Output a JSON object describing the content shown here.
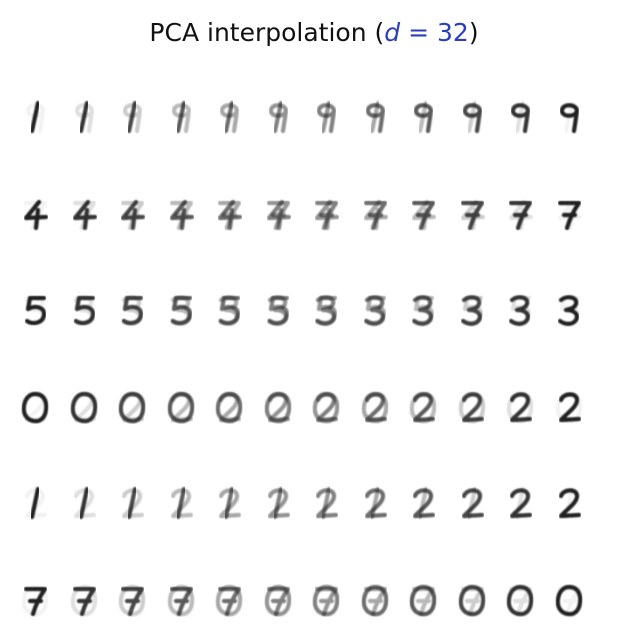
{
  "title": {
    "prefix": "PCA interpolation (",
    "variable": "d",
    "operator": " = ",
    "value": "32",
    "suffix": ")",
    "accent_color": "#2a3dbf"
  },
  "grid": {
    "rows": 6,
    "columns": 12,
    "row_transitions": [
      {
        "from": "1",
        "to": "9"
      },
      {
        "from": "4",
        "to": "7"
      },
      {
        "from": "5",
        "to": "3"
      },
      {
        "from": "0",
        "to": "2"
      },
      {
        "from": "1",
        "to": "2"
      },
      {
        "from": "7",
        "to": "0"
      }
    ],
    "ink_color": "#161616"
  }
}
